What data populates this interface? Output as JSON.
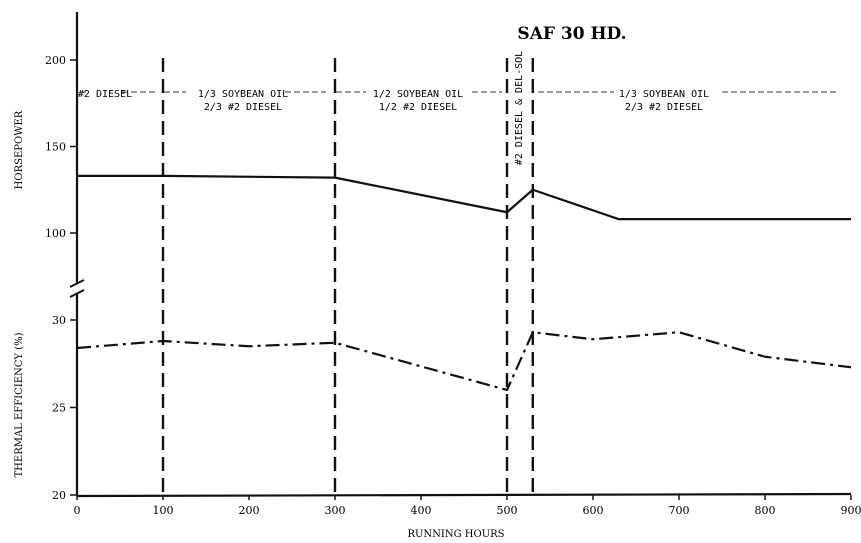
{
  "chart_data": {
    "type": "line",
    "title": "SAF 30 HD.",
    "xlabel": "RUNNING HOURS",
    "x_ticks": [
      0,
      100,
      200,
      300,
      400,
      500,
      600,
      700,
      800,
      900
    ],
    "x_tick_labels": [
      "0",
      "100",
      "200",
      "300",
      "400",
      "500",
      "600",
      "700",
      "800",
      "900"
    ],
    "xlim": [
      0,
      900
    ],
    "upper_panel": {
      "ylabel": "HORSEPOWER",
      "y_ticks": [
        100,
        150,
        200
      ],
      "y_tick_labels": [
        "100",
        "150",
        "200"
      ],
      "ylim": [
        100,
        220
      ],
      "series": [
        {
          "style": "solid",
          "x": [
            0,
            100,
            300,
            500,
            530,
            630,
            900
          ],
          "y": [
            133,
            133,
            132,
            112,
            125,
            108,
            108
          ]
        }
      ]
    },
    "lower_panel": {
      "ylabel": "THERMAL EFFICIENCY (%)",
      "y_ticks": [
        20,
        25,
        30
      ],
      "y_tick_labels": [
        "20",
        "25",
        "30"
      ],
      "ylim": [
        20,
        32
      ],
      "series": [
        {
          "style": "dash-dot",
          "x": [
            0,
            100,
            200,
            300,
            500,
            530,
            600,
            700,
            800,
            900
          ],
          "y": [
            28.4,
            28.8,
            28.5,
            28.7,
            26.0,
            29.3,
            28.9,
            29.3,
            27.9,
            27.3
          ]
        }
      ]
    },
    "fuel_changes": [
      100,
      300,
      500,
      530
    ],
    "segments": [
      {
        "lines": [
          "#2 DIESEL"
        ]
      },
      {
        "lines": [
          "1/3 SOYBEAN OIL",
          "2/3 #2 DIESEL"
        ]
      },
      {
        "lines": [
          "1/2 SOYBEAN OIL",
          "1/2 #2 DIESEL"
        ]
      },
      {
        "lines": [
          "#2 DIESEL & DEL-SOL"
        ]
      },
      {
        "lines": [
          "1/3 SOYBEAN OIL",
          "2/3 #2 DIESEL"
        ]
      }
    ]
  }
}
